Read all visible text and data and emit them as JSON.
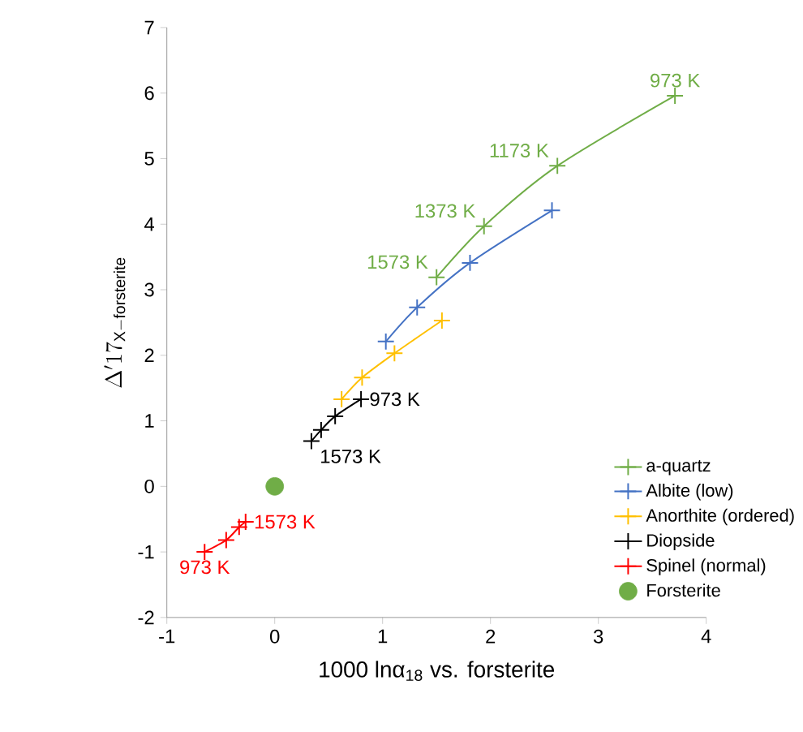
{
  "chart_data": {
    "type": "line",
    "xlabel": "1000 lnα$_{18}$ vs. forsterite",
    "ylabel": "\\Delta'17_{\\mathrm{X{-}forsterite}}",
    "xlim": [
      -1,
      4
    ],
    "ylim": [
      -2,
      7
    ],
    "xticks": [
      -1,
      0,
      1,
      2,
      3,
      4
    ],
    "yticks": [
      -2,
      -1,
      0,
      1,
      2,
      3,
      4,
      5,
      6,
      7
    ],
    "grid": false,
    "legend": "bottom right",
    "series": [
      {
        "name": "a-quartz",
        "marker": "cross",
        "color": "#70ad47",
        "x": [
          3.71,
          2.62,
          1.94,
          1.5
        ],
        "values": [
          5.96,
          4.89,
          3.97,
          3.19
        ]
      },
      {
        "name": "Albite (low)",
        "marker": "cross",
        "color": "#4472c4",
        "x": [
          2.57,
          1.81,
          1.32,
          1.03
        ],
        "values": [
          4.21,
          3.41,
          2.73,
          2.21
        ]
      },
      {
        "name": "Anorthite (ordered)",
        "marker": "cross",
        "color": "#ffc000",
        "x": [
          1.55,
          1.11,
          0.81,
          0.62
        ],
        "values": [
          2.53,
          2.03,
          1.66,
          1.33
        ]
      },
      {
        "name": "Diopside",
        "marker": "cross",
        "color": "#000000",
        "x": [
          0.8,
          0.56,
          0.43,
          0.34
        ],
        "values": [
          1.33,
          1.07,
          0.86,
          0.69
        ]
      },
      {
        "name": "Spinel (normal)",
        "marker": "cross",
        "color": "#ff0000",
        "x": [
          -0.27,
          -0.33,
          -0.45,
          -0.65
        ],
        "values": [
          -0.54,
          -0.62,
          -0.82,
          -1.0
        ]
      },
      {
        "name": "Forsterite",
        "type": "scatter",
        "marker": "circle",
        "color": "#70ad47",
        "x": [
          0
        ],
        "values": [
          0
        ]
      }
    ],
    "annotations": [
      {
        "text": "973 K",
        "x": 3.71,
        "y": 5.96
      },
      {
        "text": "1173 K",
        "x": 2.62,
        "y": 4.89
      },
      {
        "text": "1373 K",
        "x": 1.94,
        "y": 3.97
      },
      {
        "text": "1573 K",
        "x": 1.5,
        "y": 3.19
      },
      {
        "text": "973 K",
        "x": 0.8,
        "y": 1.33
      },
      {
        "text": "1573 K",
        "x": 0.34,
        "y": 0.69
      },
      {
        "text": "1573 K",
        "x": -0.27,
        "y": -0.54
      },
      {
        "text": "973 K",
        "x": -0.65,
        "y": -1.0
      }
    ]
  }
}
